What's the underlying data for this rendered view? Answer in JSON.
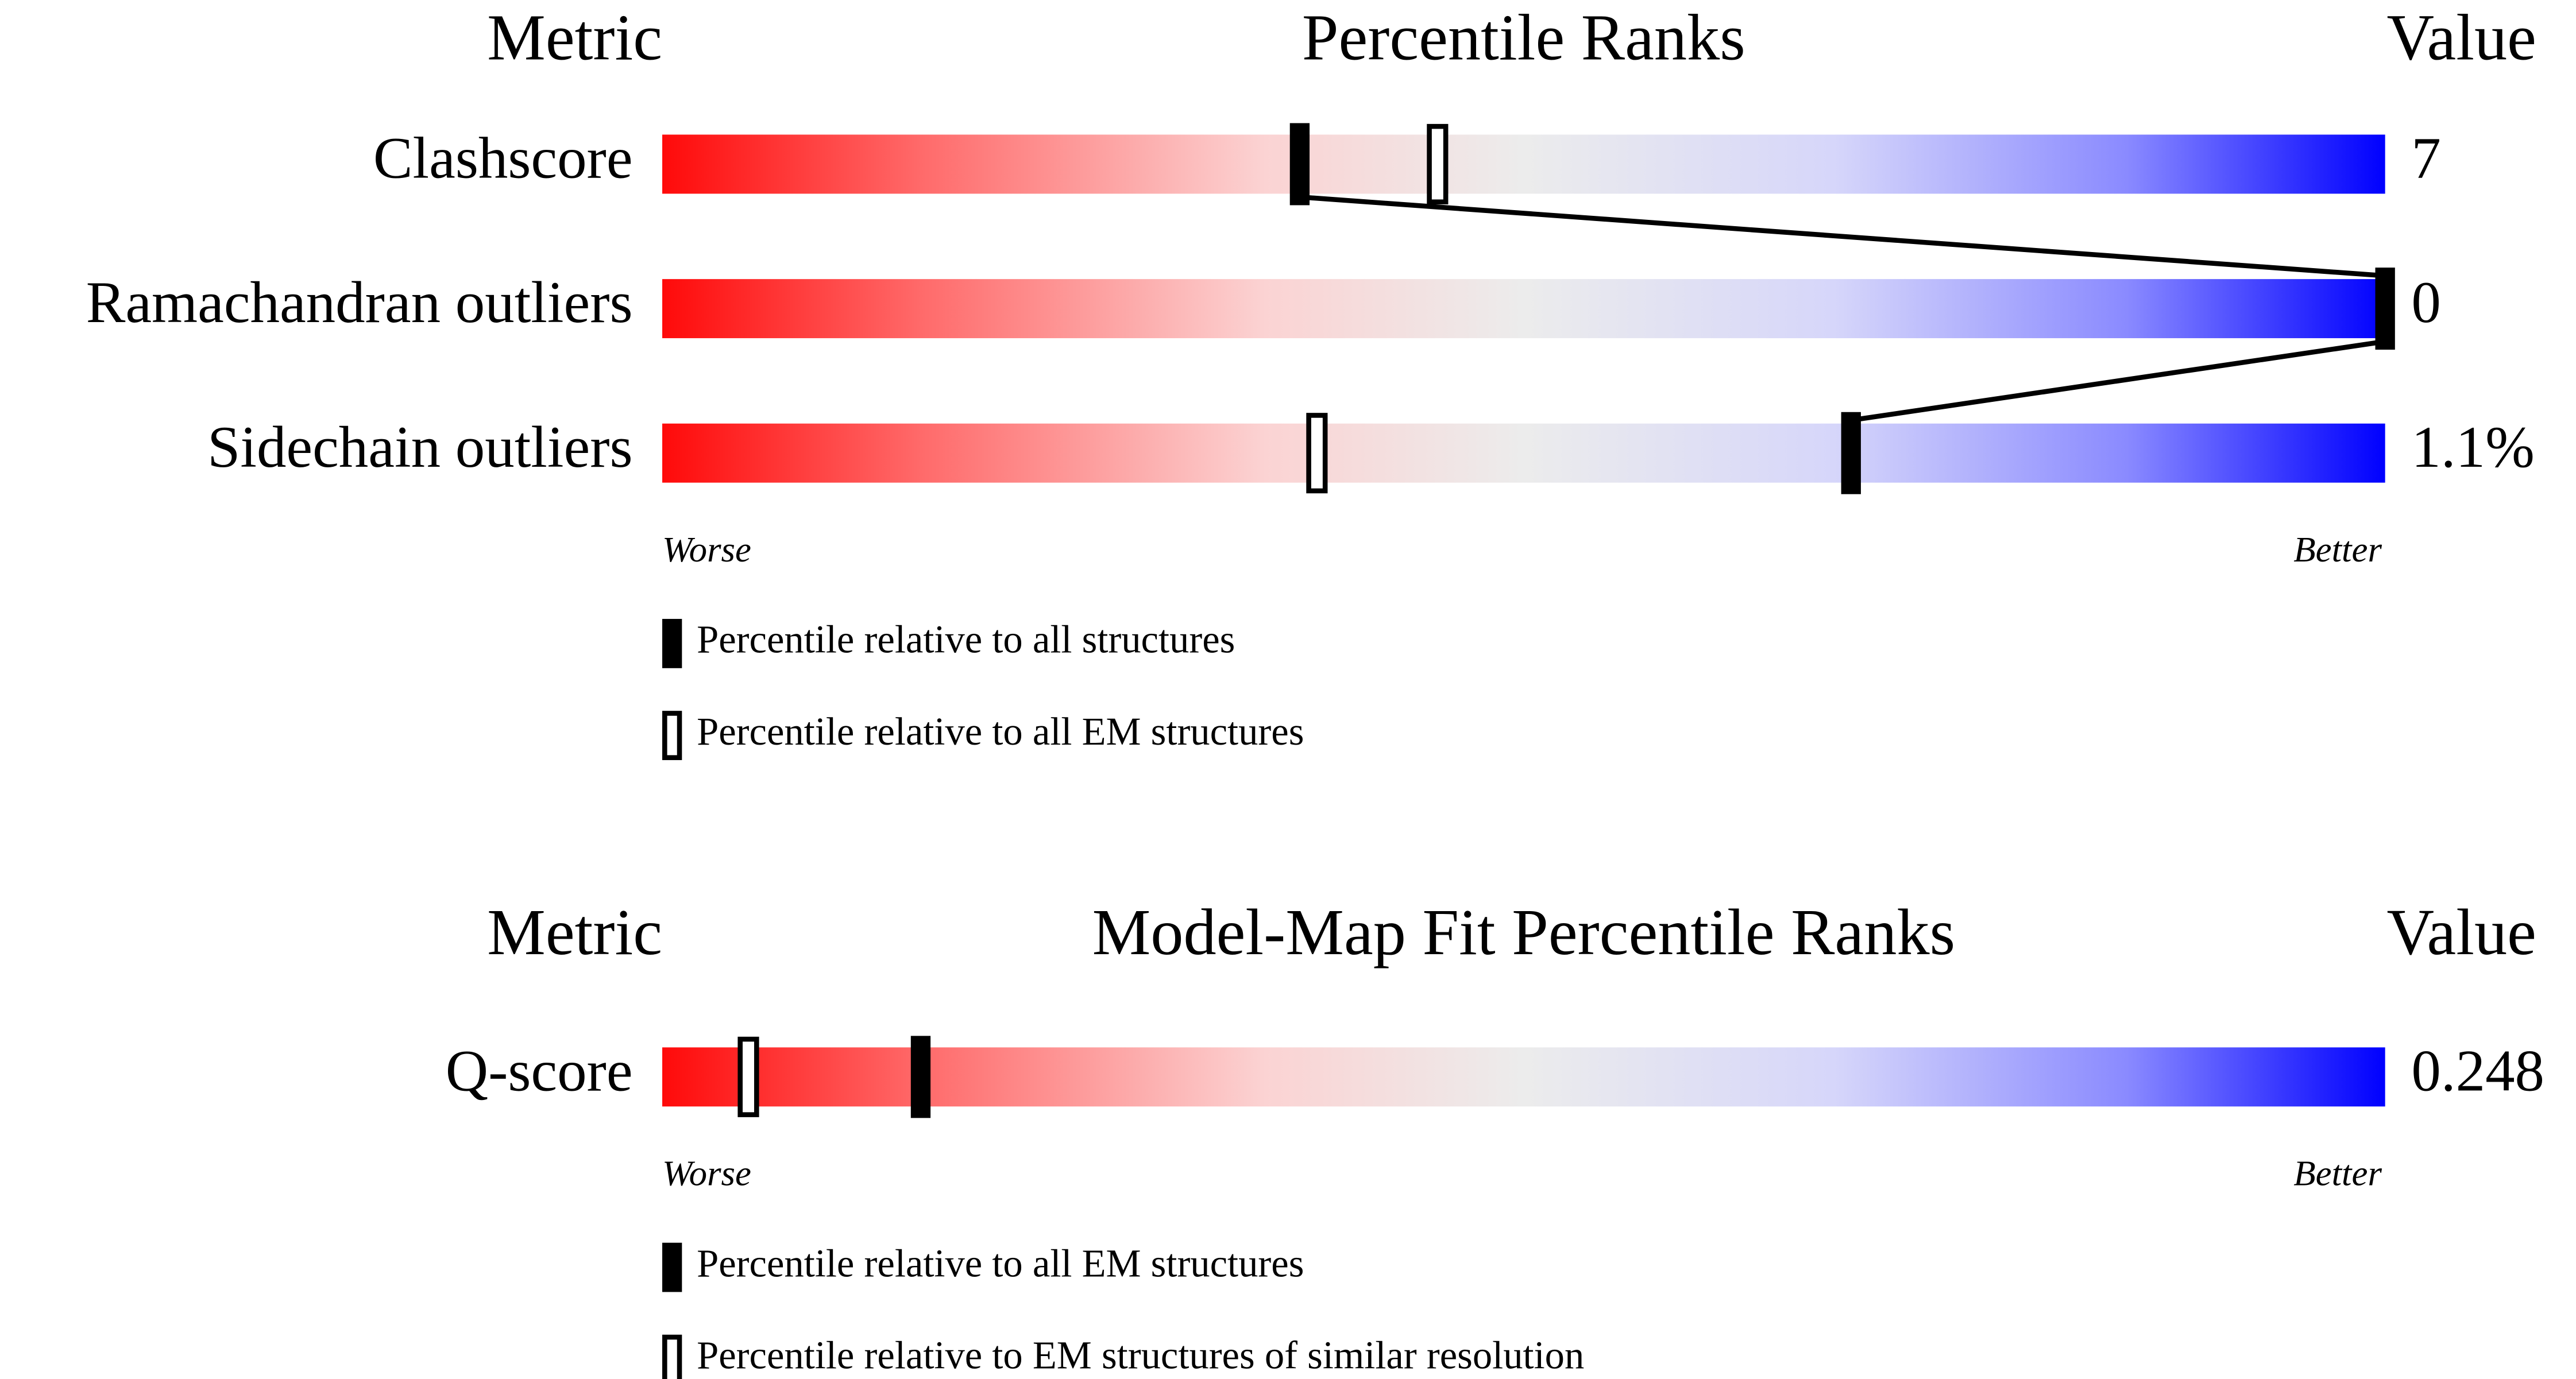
{
  "chart_data": [
    {
      "type": "percentile",
      "title": "Percentile Ranks",
      "metric_header": "Metric",
      "value_header": "Value",
      "xlim": [
        0,
        100
      ],
      "worse_label": "Worse",
      "better_label": "Better",
      "categories": [
        "Clashscore",
        "Ramachandran outliers",
        "Sidechain outliers"
      ],
      "metric_values": [
        "7",
        "0",
        "1.1%"
      ],
      "series": [
        {
          "name": "Percentile relative to all structures",
          "style": "filled",
          "color": "#000000",
          "values": [
            37,
            100,
            69
          ]
        },
        {
          "name": "Percentile relative to all EM structures",
          "style": "open",
          "color": "#000000",
          "values": [
            45,
            null,
            38
          ]
        }
      ]
    },
    {
      "type": "percentile",
      "title": "Model-Map Fit Percentile Ranks",
      "metric_header": "Metric",
      "value_header": "Value",
      "xlim": [
        0,
        100
      ],
      "worse_label": "Worse",
      "better_label": "Better",
      "categories": [
        "Q-score"
      ],
      "metric_values": [
        "0.248"
      ],
      "series": [
        {
          "name": "Percentile relative to all EM structures",
          "style": "filled",
          "color": "#000000",
          "values": [
            15
          ]
        },
        {
          "name": "Percentile relative to EM structures of similar resolution",
          "style": "open",
          "color": "#000000",
          "values": [
            5
          ]
        }
      ]
    }
  ]
}
